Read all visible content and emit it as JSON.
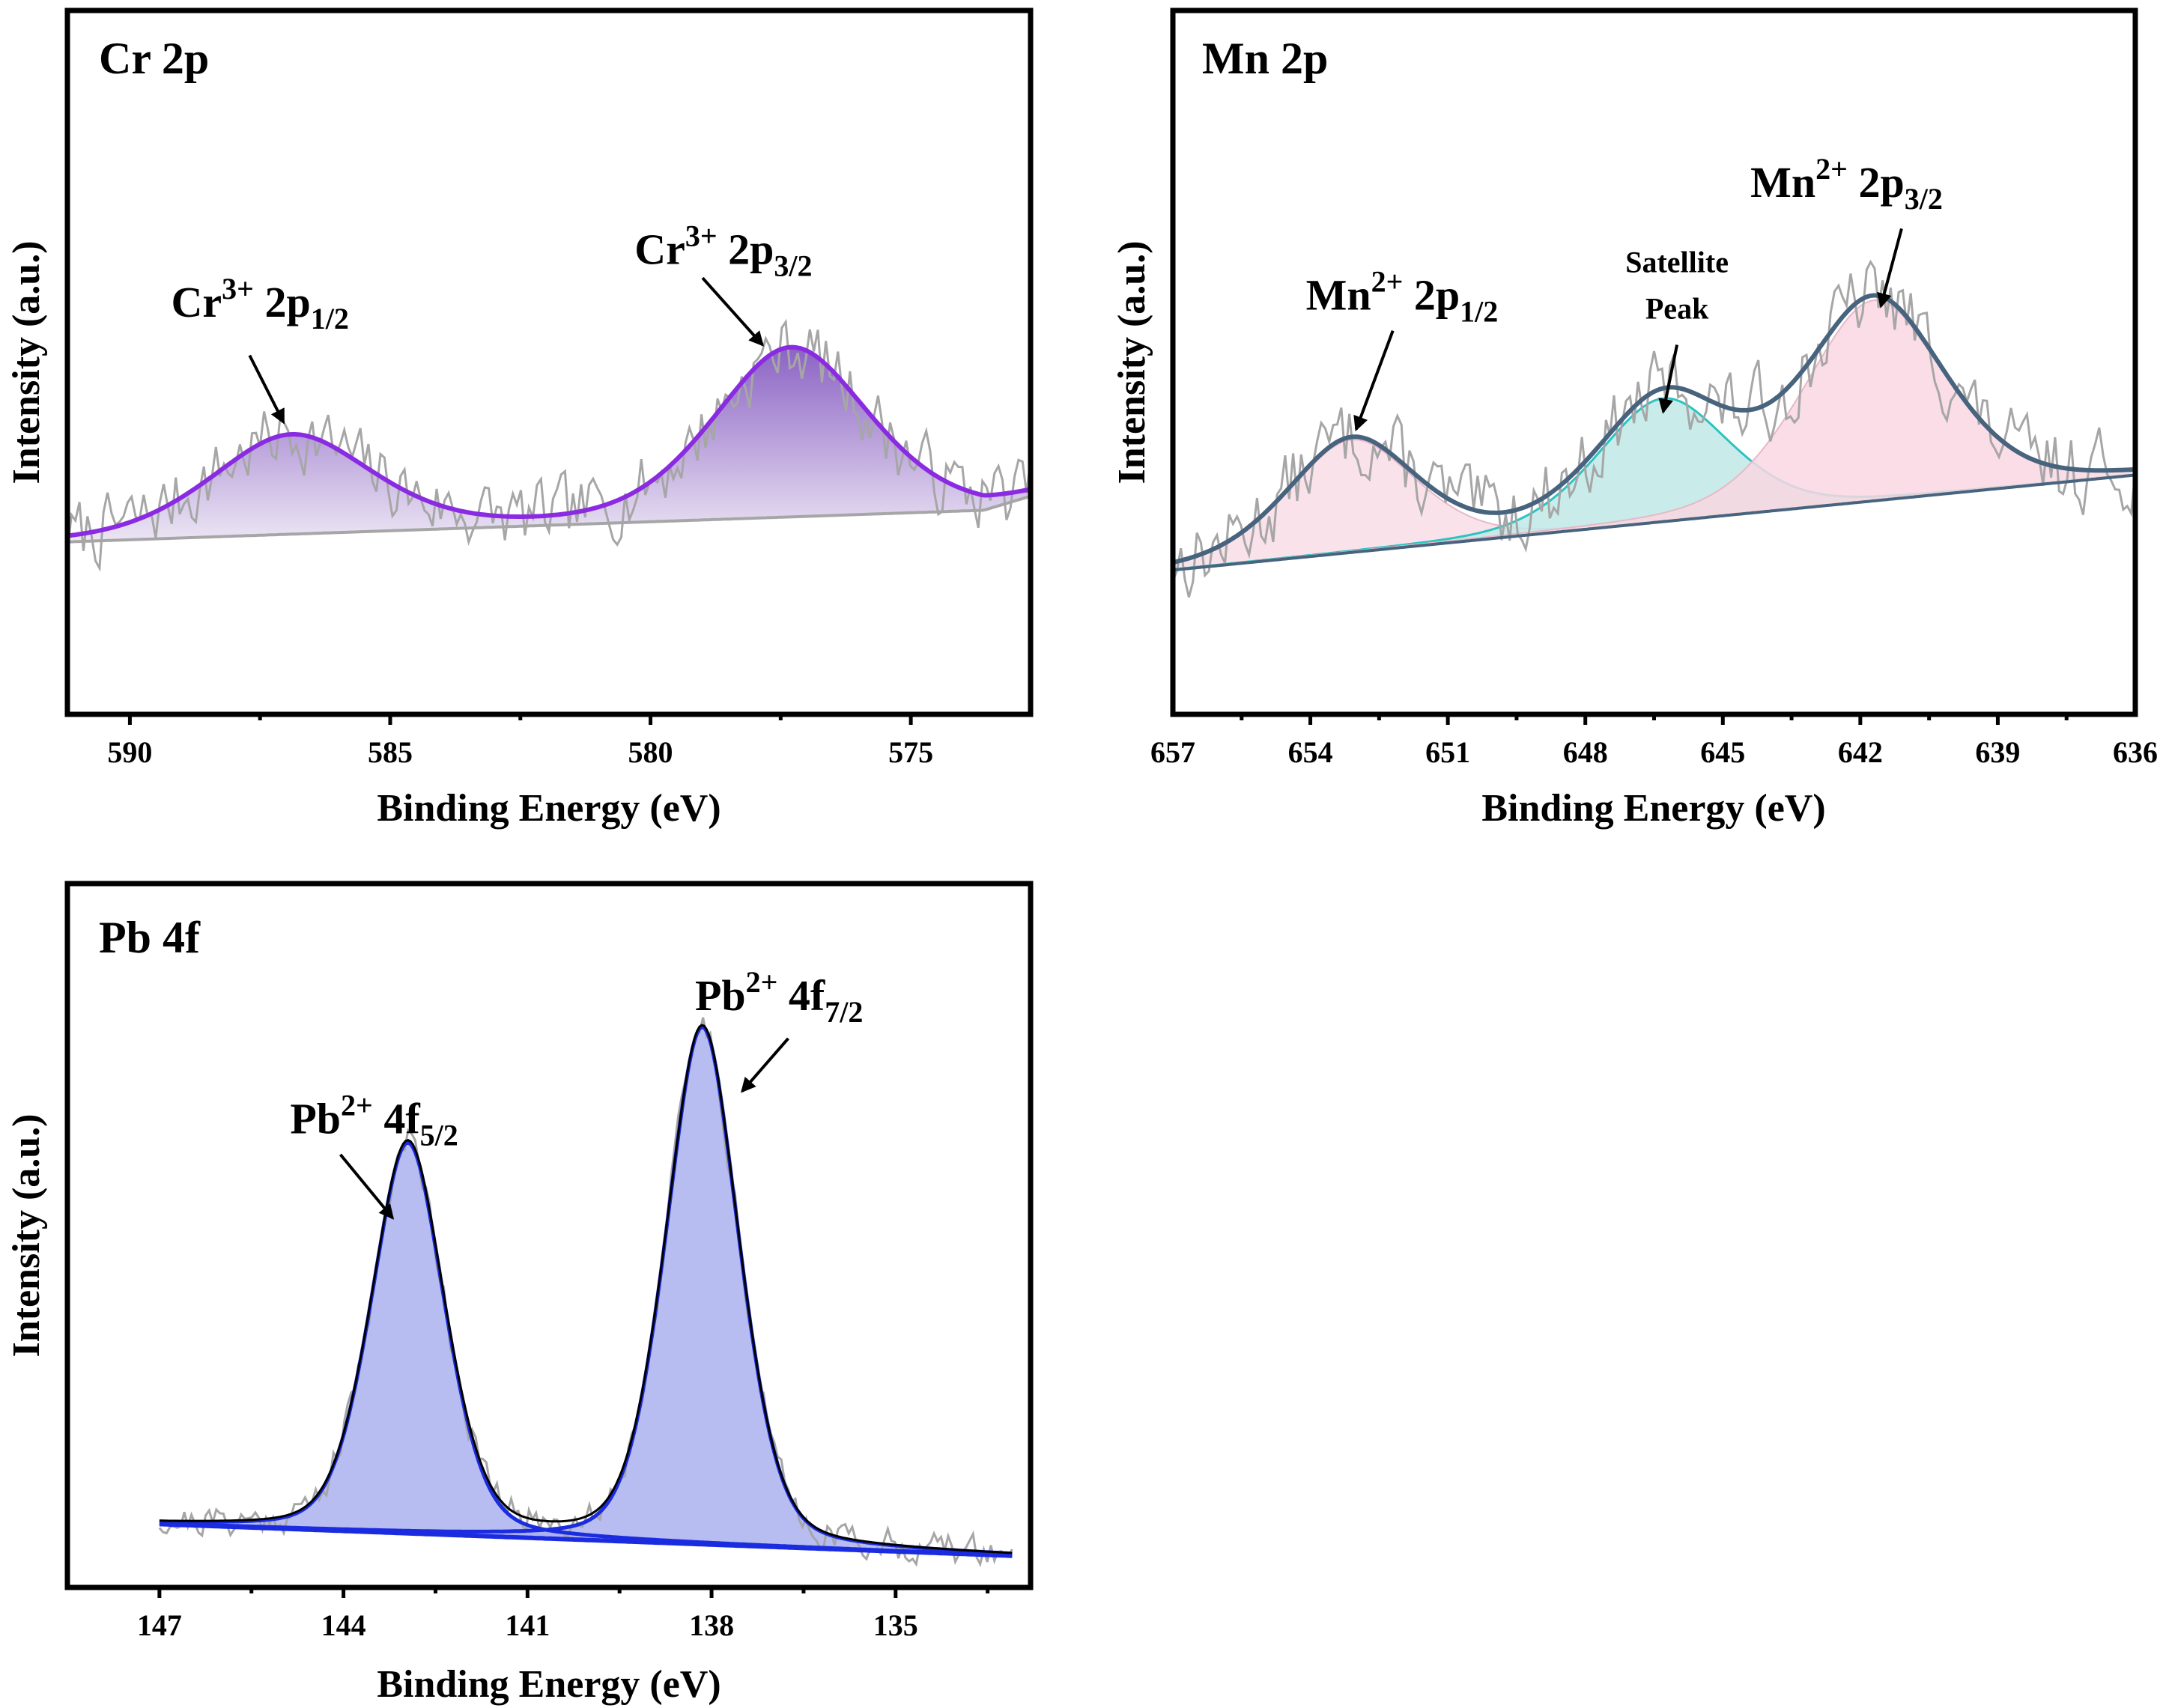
{
  "chart_data": [
    {
      "id": "cr",
      "type": "line",
      "title": "Cr 2p",
      "xlabel": "Binding Energy (eV)",
      "ylabel": "Intensity (a.u.)",
      "xlim": [
        591.2,
        572.7
      ],
      "ylim": [
        0,
        1
      ],
      "xticks": [
        590,
        585,
        580,
        575
      ],
      "minor_step": 2.5,
      "baseline": [
        [
          591.2,
          0.245
        ],
        [
          573.6,
          0.29
        ],
        [
          572.7,
          0.31
        ]
      ],
      "peaks": [
        {
          "name": "Cr³⁺ 2p₁/₂",
          "center": 586.9,
          "height": 0.14,
          "sigma": 1.6
        },
        {
          "name": "Cr³⁺ 2p₃/₂",
          "center": 577.3,
          "height": 0.24,
          "sigma": 1.55
        }
      ],
      "noise": {
        "amplitude": 0.045,
        "seed": 7
      },
      "colors": {
        "envelope": "#8a2be2",
        "fill_top": "#8b63c4",
        "fill_bottom": "#ece6f4",
        "raw": "#a6a6a6",
        "baseline": "#a6a6a6"
      },
      "annotations": [
        {
          "base": "Cr",
          "sup": "3+",
          "rest": " 2p",
          "sub": "1/2",
          "x": 587.5,
          "y": 0.565,
          "arrow_from": [
            587.7,
            0.51
          ],
          "arrow_to": [
            587.05,
            0.415
          ]
        },
        {
          "base": "Cr",
          "sup": "3+",
          "rest": " 2p",
          "sub": "3/2",
          "x": 578.6,
          "y": 0.64,
          "arrow_from": [
            579.0,
            0.62
          ],
          "arrow_to": [
            577.85,
            0.525
          ]
        }
      ]
    },
    {
      "id": "mn",
      "type": "line",
      "title": "Mn 2p",
      "xlabel": "Binding Energy (eV)",
      "ylabel": "Intensity (a.u.)",
      "xlim": [
        657,
        636
      ],
      "ylim": [
        0,
        1
      ],
      "xticks": [
        657,
        654,
        651,
        648,
        645,
        642,
        639,
        636
      ],
      "minor_step": 1.5,
      "baseline": [
        [
          657,
          0.205
        ],
        [
          636,
          0.34
        ]
      ],
      "peaks": [
        {
          "name": "Mn²⁺ 2p₁/₂",
          "center": 653.1,
          "height": 0.16,
          "sigma": 1.45,
          "fill": "#f9dde7"
        },
        {
          "name": "Satellite Peak",
          "center": 646.3,
          "height": 0.175,
          "sigma": 1.5,
          "fill": "#bfe9e6",
          "line": "#2cc4c0"
        },
        {
          "name": "Mn²⁺ 2p₃/₂",
          "center": 641.7,
          "height": 0.285,
          "sigma": 1.6,
          "fill": "#f9d7e2"
        }
      ],
      "noise": {
        "amplitude": 0.05,
        "seed": 13
      },
      "colors": {
        "envelope": "#47637d",
        "raw": "#a6a6a6",
        "baseline": "#47637d"
      },
      "annotations": [
        {
          "base": "Mn",
          "sup": "2+",
          "rest": " 2p",
          "sub": "1/2",
          "x": 652.0,
          "y": 0.575,
          "arrow_from": [
            652.2,
            0.545
          ],
          "arrow_to": [
            653.0,
            0.405
          ]
        },
        {
          "base": "Mn",
          "sup": "2+",
          "rest": " 2p",
          "sub": "3/2",
          "x": 642.3,
          "y": 0.735,
          "arrow_from": [
            641.1,
            0.69
          ],
          "arrow_to": [
            641.55,
            0.58
          ]
        },
        {
          "line1": "Satellite",
          "line2": "Peak",
          "x": 646.0,
          "y": 0.628,
          "y2": 0.562,
          "arrow_from": [
            646.0,
            0.525
          ],
          "arrow_to": [
            646.3,
            0.43
          ]
        }
      ]
    },
    {
      "id": "pb",
      "type": "line",
      "title": "Pb 4f",
      "xlabel": "Binding Energy (eV)",
      "ylabel": "Intensity (a.u.)",
      "xlim": [
        148.5,
        132.8
      ],
      "ylim": [
        0,
        1
      ],
      "xticks": [
        147,
        144,
        141,
        138,
        135
      ],
      "minor_step": 1.5,
      "baseline": [
        [
          147,
          0.09
        ],
        [
          133.1,
          0.045
        ]
      ],
      "peaks": [
        {
          "name": "Pb²⁺ 4f₅/₂",
          "center": 142.95,
          "height": 0.555,
          "sigma": 0.62
        },
        {
          "name": "Pb²⁺ 4f₇/₂",
          "center": 138.15,
          "height": 0.735,
          "sigma": 0.62
        }
      ],
      "noise": {
        "amplitude": 0.02,
        "seed": 21
      },
      "colors": {
        "envelope": "#000000",
        "component": "#1a2be0",
        "fill": "#aab0ee",
        "raw": "#a6a6a6",
        "baseline": "#1a2be0"
      },
      "annotations": [
        {
          "base": "Pb",
          "sup": "2+",
          "rest": " 4f",
          "sub": "5/2",
          "x": 143.5,
          "y": 0.645,
          "arrow_from": [
            144.05,
            0.615
          ],
          "arrow_to": [
            143.2,
            0.525
          ]
        },
        {
          "base": "Pb",
          "sup": "2+",
          "rest": " 4f",
          "sub": "7/2",
          "x": 136.9,
          "y": 0.82,
          "arrow_from": [
            136.75,
            0.78
          ],
          "arrow_to": [
            137.5,
            0.705
          ]
        }
      ]
    }
  ]
}
